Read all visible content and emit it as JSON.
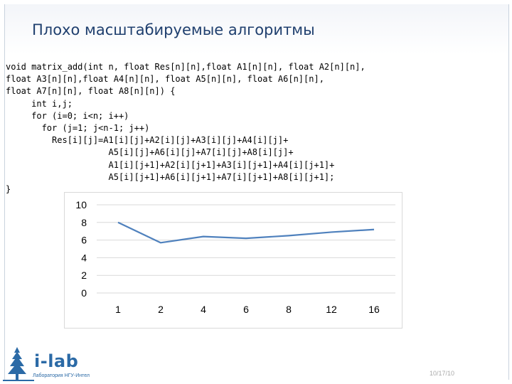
{
  "slide": {
    "title": "Плохо масштабируемые алгоритмы",
    "code_lines": [
      "void matrix_add(int n, float Res[n][n],float A1[n][n], float A2[n][n],",
      "float A3[n][n],float A4[n][n], float A5[n][n], float A6[n][n],",
      "float A7[n][n], float A8[n][n]) {",
      "     int i,j;",
      "     for (i=0; i<n; i++)",
      "       for (j=1; j<n-1; j++)",
      "         Res[i][j]=A1[i][j]+A2[i][j]+A3[i][j]+A4[i][j]+",
      "                    A5[i][j]+A6[i][j]+A7[i][j]+A8[i][j]+",
      "                    A1[i][j+1]+A2[i][j+1]+A3[i][j+1]+A4[i][j+1]+",
      "                    A5[i][j+1]+A6[i][j+1]+A7[i][j+1]+A8[i][j+1];",
      "}"
    ],
    "date": "10/17/10",
    "logo": {
      "brand": "i-lab",
      "subtitle": "Лаборатория НГУ-Интел"
    }
  },
  "colors": {
    "title": "#1f3f6e",
    "series": "#4f81bd",
    "gridline": "#d9d9d9",
    "logo": "#2b6aa6"
  },
  "chart_data": {
    "type": "line",
    "categories": [
      "1",
      "2",
      "4",
      "6",
      "8",
      "12",
      "16"
    ],
    "series": [
      {
        "values": [
          8.0,
          5.7,
          6.4,
          6.2,
          6.5,
          6.9,
          7.2
        ]
      }
    ],
    "ylim": [
      0,
      10
    ],
    "yticks": [
      0,
      2,
      4,
      6,
      8,
      10
    ],
    "grid": true,
    "legend": "none"
  }
}
